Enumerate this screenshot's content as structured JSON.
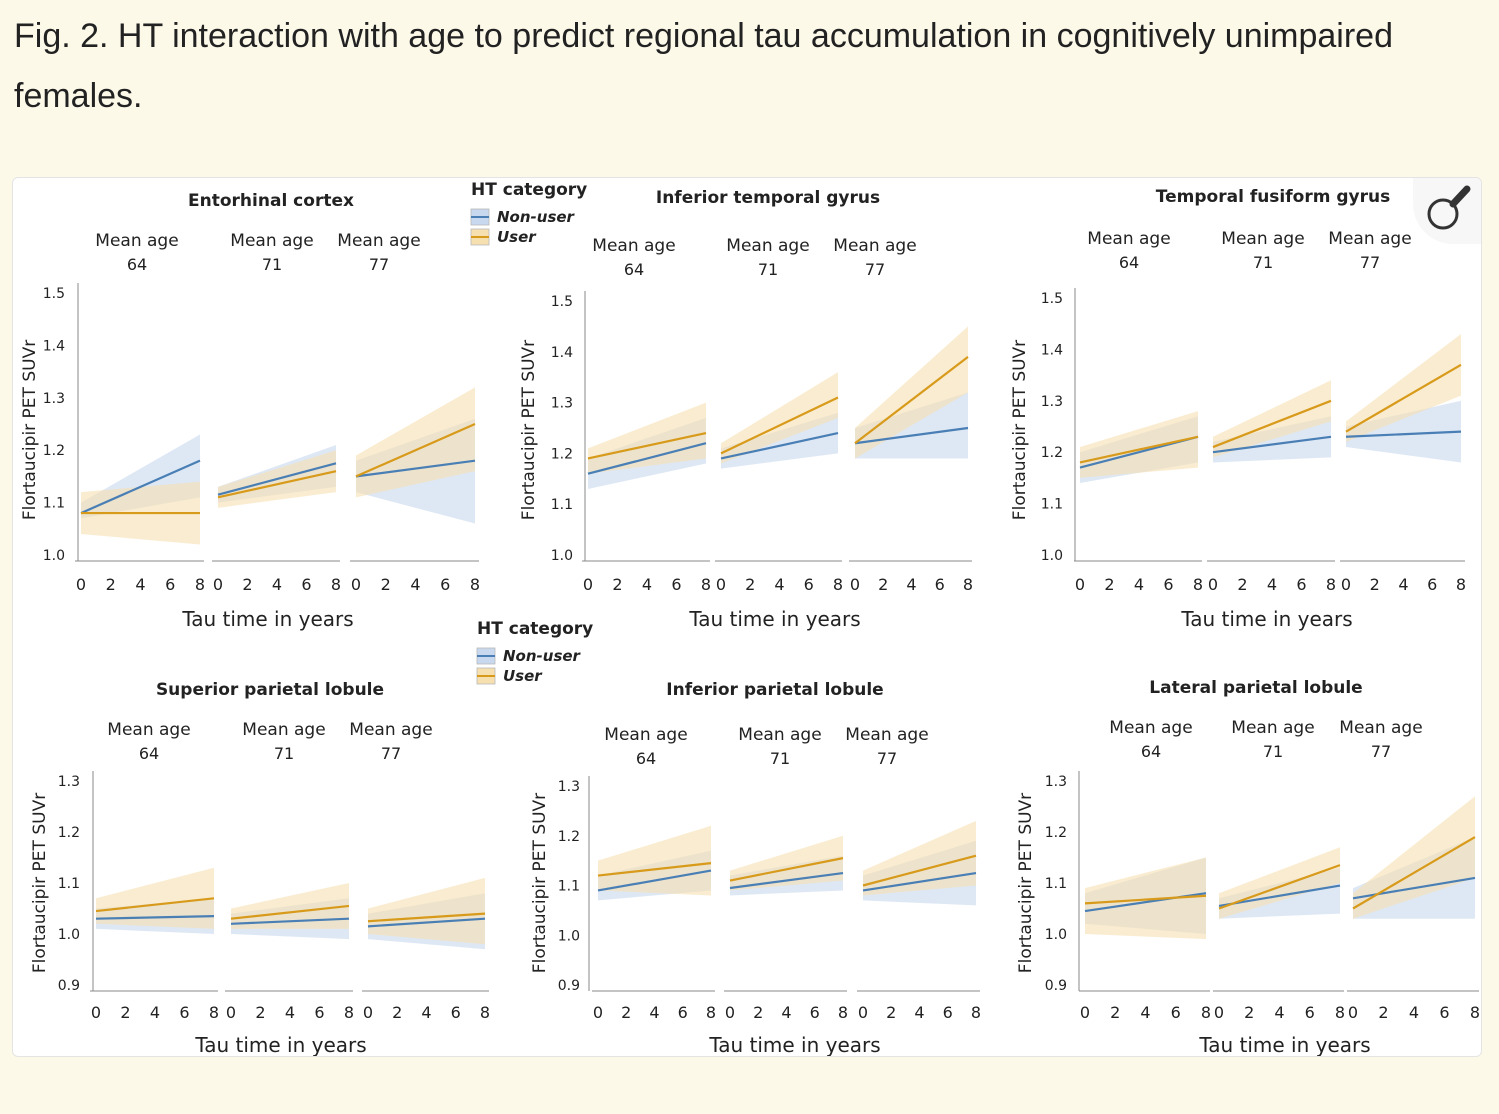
{
  "caption": "Fig. 2. HT interaction with age to predict regional tau accumulation in cognitively unimpaired females.",
  "colors": {
    "non_user": "#4a7fb5",
    "user": "#d89a1a",
    "non_user_ci": "#c8d8ee",
    "user_ci": "#f7e0b0",
    "axis": "#888888"
  },
  "zoom_button": {
    "icon": "magnifier-icon"
  },
  "chart_data": [
    {
      "type": "line",
      "title": "Entorhinal cortex",
      "ylabel": "Flortaucipir PET SUVr",
      "xlabel": "Tau time in years",
      "ylim": [
        1.0,
        1.5
      ],
      "yticks": [
        "1.0",
        "1.1",
        "1.2",
        "1.3",
        "1.4",
        "1.5"
      ],
      "xticks": [
        "0",
        "2",
        "4",
        "6",
        "8"
      ],
      "legend": {
        "title": "HT category",
        "entries": [
          "Non-user",
          "User"
        ]
      },
      "facets": [
        {
          "label_top": "Mean age",
          "label_bottom": "64",
          "series": [
            {
              "name": "Non-user",
              "x": [
                0,
                8
              ],
              "y": [
                1.08,
                1.18
              ],
              "ci_lo": [
                1.07,
                1.11
              ],
              "ci_hi": [
                1.1,
                1.23
              ]
            },
            {
              "name": "User",
              "x": [
                0,
                8
              ],
              "y": [
                1.08,
                1.08
              ],
              "ci_lo": [
                1.04,
                1.02
              ],
              "ci_hi": [
                1.12,
                1.14
              ]
            }
          ]
        },
        {
          "label_top": "Mean age",
          "label_bottom": "71",
          "series": [
            {
              "name": "Non-user",
              "x": [
                0,
                8
              ],
              "y": [
                1.115,
                1.175
              ],
              "ci_lo": [
                1.1,
                1.13
              ],
              "ci_hi": [
                1.13,
                1.21
              ]
            },
            {
              "name": "User",
              "x": [
                0,
                8
              ],
              "y": [
                1.11,
                1.16
              ],
              "ci_lo": [
                1.09,
                1.12
              ],
              "ci_hi": [
                1.13,
                1.2
              ]
            }
          ]
        },
        {
          "label_top": "Mean age",
          "label_bottom": "77",
          "series": [
            {
              "name": "Non-user",
              "x": [
                0,
                8
              ],
              "y": [
                1.15,
                1.18
              ],
              "ci_lo": [
                1.12,
                1.06
              ],
              "ci_hi": [
                1.18,
                1.26
              ]
            },
            {
              "name": "User",
              "x": [
                0,
                8
              ],
              "y": [
                1.15,
                1.25
              ],
              "ci_lo": [
                1.11,
                1.16
              ],
              "ci_hi": [
                1.19,
                1.32
              ]
            }
          ]
        }
      ]
    },
    {
      "type": "line",
      "title": "Inferior temporal gyrus",
      "ylabel": "Flortaucipir PET SUVr",
      "xlabel": "Tau time in years",
      "ylim": [
        1.0,
        1.5
      ],
      "yticks": [
        "1.0",
        "1.1",
        "1.2",
        "1.3",
        "1.4",
        "1.5"
      ],
      "xticks": [
        "0",
        "2",
        "4",
        "6",
        "8"
      ],
      "facets": [
        {
          "label_top": "Mean age",
          "label_bottom": "64",
          "series": [
            {
              "name": "Non-user",
              "x": [
                0,
                8
              ],
              "y": [
                1.16,
                1.22
              ],
              "ci_lo": [
                1.13,
                1.18
              ],
              "ci_hi": [
                1.19,
                1.27
              ]
            },
            {
              "name": "User",
              "x": [
                0,
                8
              ],
              "y": [
                1.19,
                1.24
              ],
              "ci_lo": [
                1.16,
                1.19
              ],
              "ci_hi": [
                1.21,
                1.3
              ]
            }
          ]
        },
        {
          "label_top": "Mean age",
          "label_bottom": "71",
          "series": [
            {
              "name": "Non-user",
              "x": [
                0,
                8
              ],
              "y": [
                1.19,
                1.24
              ],
              "ci_lo": [
                1.17,
                1.2
              ],
              "ci_hi": [
                1.21,
                1.28
              ]
            },
            {
              "name": "User",
              "x": [
                0,
                8
              ],
              "y": [
                1.2,
                1.31
              ],
              "ci_lo": [
                1.18,
                1.27
              ],
              "ci_hi": [
                1.22,
                1.36
              ]
            }
          ]
        },
        {
          "label_top": "Mean age",
          "label_bottom": "77",
          "series": [
            {
              "name": "Non-user",
              "x": [
                0,
                8
              ],
              "y": [
                1.22,
                1.25
              ],
              "ci_lo": [
                1.19,
                1.19
              ],
              "ci_hi": [
                1.25,
                1.32
              ]
            },
            {
              "name": "User",
              "x": [
                0,
                8
              ],
              "y": [
                1.22,
                1.39
              ],
              "ci_lo": [
                1.19,
                1.32
              ],
              "ci_hi": [
                1.25,
                1.45
              ]
            }
          ]
        }
      ]
    },
    {
      "type": "line",
      "title": "Temporal fusiform gyrus",
      "ylabel": "Flortaucipir PET SUVr",
      "xlabel": "Tau time in years",
      "ylim": [
        1.0,
        1.5
      ],
      "yticks": [
        "1.0",
        "1.1",
        "1.2",
        "1.3",
        "1.4",
        "1.5"
      ],
      "xticks": [
        "0",
        "2",
        "4",
        "6",
        "8"
      ],
      "facets": [
        {
          "label_top": "Mean age",
          "label_bottom": "64",
          "series": [
            {
              "name": "Non-user",
              "x": [
                0,
                8
              ],
              "y": [
                1.17,
                1.23
              ],
              "ci_lo": [
                1.14,
                1.18
              ],
              "ci_hi": [
                1.2,
                1.27
              ]
            },
            {
              "name": "User",
              "x": [
                0,
                8
              ],
              "y": [
                1.18,
                1.23
              ],
              "ci_lo": [
                1.15,
                1.17
              ],
              "ci_hi": [
                1.21,
                1.28
              ]
            }
          ]
        },
        {
          "label_top": "Mean age",
          "label_bottom": "71",
          "series": [
            {
              "name": "Non-user",
              "x": [
                0,
                8
              ],
              "y": [
                1.2,
                1.23
              ],
              "ci_lo": [
                1.18,
                1.19
              ],
              "ci_hi": [
                1.22,
                1.27
              ]
            },
            {
              "name": "User",
              "x": [
                0,
                8
              ],
              "y": [
                1.21,
                1.3
              ],
              "ci_lo": [
                1.19,
                1.26
              ],
              "ci_hi": [
                1.23,
                1.34
              ]
            }
          ]
        },
        {
          "label_top": "Mean age",
          "label_bottom": "77",
          "series": [
            {
              "name": "Non-user",
              "x": [
                0,
                8
              ],
              "y": [
                1.23,
                1.24
              ],
              "ci_lo": [
                1.21,
                1.18
              ],
              "ci_hi": [
                1.25,
                1.3
              ]
            },
            {
              "name": "User",
              "x": [
                0,
                8
              ],
              "y": [
                1.24,
                1.37
              ],
              "ci_lo": [
                1.22,
                1.31
              ],
              "ci_hi": [
                1.26,
                1.43
              ]
            }
          ]
        }
      ]
    },
    {
      "type": "line",
      "title": "Superior parietal lobule",
      "ylabel": "Flortaucipir PET SUVr",
      "xlabel": "Tau time in years",
      "ylim": [
        0.9,
        1.3
      ],
      "yticks": [
        "0.9",
        "1.0",
        "1.1",
        "1.2",
        "1.3"
      ],
      "xticks": [
        "0",
        "2",
        "4",
        "6",
        "8"
      ],
      "legend": {
        "title": "HT category",
        "entries": [
          "Non-user",
          "User"
        ]
      },
      "facets": [
        {
          "label_top": "Mean age",
          "label_bottom": "64",
          "series": [
            {
              "name": "Non-user",
              "x": [
                0,
                8
              ],
              "y": [
                1.03,
                1.035
              ],
              "ci_lo": [
                1.01,
                1.0
              ],
              "ci_hi": [
                1.05,
                1.07
              ]
            },
            {
              "name": "User",
              "x": [
                0,
                8
              ],
              "y": [
                1.045,
                1.07
              ],
              "ci_lo": [
                1.02,
                1.01
              ],
              "ci_hi": [
                1.07,
                1.13
              ]
            }
          ]
        },
        {
          "label_top": "Mean age",
          "label_bottom": "71",
          "series": [
            {
              "name": "Non-user",
              "x": [
                0,
                8
              ],
              "y": [
                1.02,
                1.03
              ],
              "ci_lo": [
                1.0,
                0.99
              ],
              "ci_hi": [
                1.04,
                1.07
              ]
            },
            {
              "name": "User",
              "x": [
                0,
                8
              ],
              "y": [
                1.03,
                1.055
              ],
              "ci_lo": [
                1.01,
                1.01
              ],
              "ci_hi": [
                1.05,
                1.1
              ]
            }
          ]
        },
        {
          "label_top": "Mean age",
          "label_bottom": "77",
          "series": [
            {
              "name": "Non-user",
              "x": [
                0,
                8
              ],
              "y": [
                1.015,
                1.03
              ],
              "ci_lo": [
                0.99,
                0.97
              ],
              "ci_hi": [
                1.04,
                1.08
              ]
            },
            {
              "name": "User",
              "x": [
                0,
                8
              ],
              "y": [
                1.025,
                1.04
              ],
              "ci_lo": [
                1.0,
                0.98
              ],
              "ci_hi": [
                1.05,
                1.11
              ]
            }
          ]
        }
      ]
    },
    {
      "type": "line",
      "title": "Inferior parietal lobule",
      "ylabel": "Flortaucipir PET SUVr",
      "xlabel": "Tau time in years",
      "ylim": [
        0.9,
        1.3
      ],
      "yticks": [
        "0.9",
        "1.0",
        "1.1",
        "1.2",
        "1.3"
      ],
      "xticks": [
        "0",
        "2",
        "4",
        "6",
        "8"
      ],
      "facets": [
        {
          "label_top": "Mean age",
          "label_bottom": "64",
          "series": [
            {
              "name": "Non-user",
              "x": [
                0,
                8
              ],
              "y": [
                1.09,
                1.13
              ],
              "ci_lo": [
                1.07,
                1.09
              ],
              "ci_hi": [
                1.12,
                1.17
              ]
            },
            {
              "name": "User",
              "x": [
                0,
                8
              ],
              "y": [
                1.12,
                1.145
              ],
              "ci_lo": [
                1.09,
                1.08
              ],
              "ci_hi": [
                1.15,
                1.22
              ]
            }
          ]
        },
        {
          "label_top": "Mean age",
          "label_bottom": "71",
          "series": [
            {
              "name": "Non-user",
              "x": [
                0,
                8
              ],
              "y": [
                1.095,
                1.125
              ],
              "ci_lo": [
                1.08,
                1.09
              ],
              "ci_hi": [
                1.12,
                1.16
              ]
            },
            {
              "name": "User",
              "x": [
                0,
                8
              ],
              "y": [
                1.11,
                1.155
              ],
              "ci_lo": [
                1.09,
                1.11
              ],
              "ci_hi": [
                1.13,
                1.2
              ]
            }
          ]
        },
        {
          "label_top": "Mean age",
          "label_bottom": "77",
          "series": [
            {
              "name": "Non-user",
              "x": [
                0,
                8
              ],
              "y": [
                1.09,
                1.125
              ],
              "ci_lo": [
                1.07,
                1.06
              ],
              "ci_hi": [
                1.12,
                1.19
              ]
            },
            {
              "name": "User",
              "x": [
                0,
                8
              ],
              "y": [
                1.1,
                1.16
              ],
              "ci_lo": [
                1.08,
                1.1
              ],
              "ci_hi": [
                1.13,
                1.23
              ]
            }
          ]
        }
      ]
    },
    {
      "type": "line",
      "title": "Lateral parietal lobule",
      "ylabel": "Flortaucipir PET SUVr",
      "xlabel": "Tau time in years",
      "ylim": [
        0.9,
        1.3
      ],
      "yticks": [
        "0.9",
        "1.0",
        "1.1",
        "1.2",
        "1.3"
      ],
      "xticks": [
        "0",
        "2",
        "4",
        "6",
        "8"
      ],
      "facets": [
        {
          "label_top": "Mean age",
          "label_bottom": "64",
          "series": [
            {
              "name": "Non-user",
              "x": [
                0,
                8
              ],
              "y": [
                1.045,
                1.08
              ],
              "ci_lo": [
                1.02,
                1.0
              ],
              "ci_hi": [
                1.08,
                1.15
              ]
            },
            {
              "name": "User",
              "x": [
                0,
                8
              ],
              "y": [
                1.06,
                1.075
              ],
              "ci_lo": [
                1.0,
                0.99
              ],
              "ci_hi": [
                1.09,
                1.15
              ]
            }
          ]
        },
        {
          "label_top": "Mean age",
          "label_bottom": "71",
          "series": [
            {
              "name": "Non-user",
              "x": [
                0,
                8
              ],
              "y": [
                1.055,
                1.095
              ],
              "ci_lo": [
                1.03,
                1.04
              ],
              "ci_hi": [
                1.07,
                1.13
              ]
            },
            {
              "name": "User",
              "x": [
                0,
                8
              ],
              "y": [
                1.05,
                1.135
              ],
              "ci_lo": [
                1.03,
                1.1
              ],
              "ci_hi": [
                1.08,
                1.17
              ]
            }
          ]
        },
        {
          "label_top": "Mean age",
          "label_bottom": "77",
          "series": [
            {
              "name": "Non-user",
              "x": [
                0,
                8
              ],
              "y": [
                1.07,
                1.11
              ],
              "ci_lo": [
                1.03,
                1.03
              ],
              "ci_hi": [
                1.09,
                1.19
              ]
            },
            {
              "name": "User",
              "x": [
                0,
                8
              ],
              "y": [
                1.05,
                1.19
              ],
              "ci_lo": [
                1.03,
                1.11
              ],
              "ci_hi": [
                1.08,
                1.27
              ]
            }
          ]
        }
      ]
    }
  ]
}
